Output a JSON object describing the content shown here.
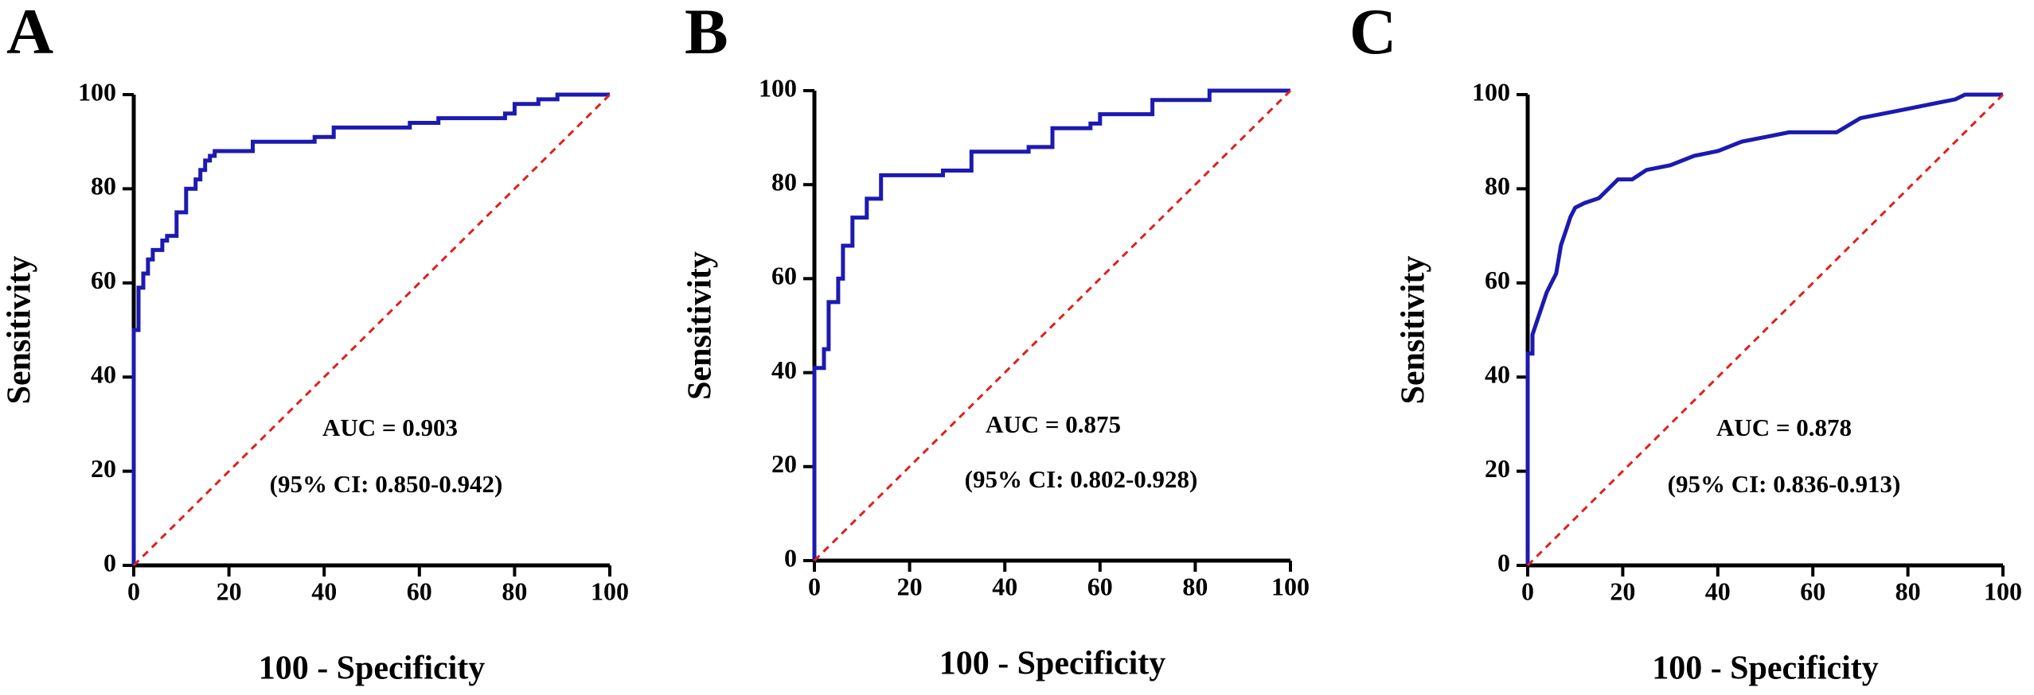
{
  "chart_data": [
    {
      "type": "line",
      "panel": "A",
      "xlabel": "100 - Specificity",
      "ylabel": "Sensitivity",
      "annotations": [
        "AUC = 0.903",
        "(95% CI: 0.850-0.942)"
      ],
      "xlim": [
        0,
        100
      ],
      "ylim": [
        0,
        100
      ],
      "xticks": [
        0,
        20,
        40,
        60,
        80,
        100
      ],
      "yticks": [
        0,
        20,
        40,
        60,
        80,
        100
      ],
      "series": [
        {
          "color": "#1c1ab0",
          "x": [
            0,
            0,
            1,
            1,
            2,
            2,
            3,
            3,
            4,
            4,
            6,
            6,
            7,
            7,
            9,
            9,
            11,
            11,
            13,
            13,
            14,
            14,
            15,
            15,
            16,
            16,
            17,
            17,
            25,
            25,
            38,
            38,
            42,
            42,
            58,
            58,
            64,
            64,
            78,
            78,
            80,
            80,
            85,
            85,
            89,
            89,
            100
          ],
          "values": [
            0,
            50,
            50,
            59,
            59,
            62,
            62,
            65,
            65,
            67,
            67,
            69,
            69,
            70,
            70,
            75,
            75,
            80,
            80,
            82,
            82,
            84,
            84,
            86,
            86,
            87,
            87,
            88,
            88,
            90,
            90,
            91,
            91,
            93,
            93,
            94,
            94,
            95,
            95,
            96,
            96,
            98,
            98,
            99,
            99,
            100,
            100
          ]
        },
        {
          "color": "#e0201b",
          "dashed": true,
          "x": [
            0,
            100
          ],
          "values": [
            0,
            100
          ]
        }
      ]
    },
    {
      "type": "line",
      "panel": "B",
      "xlabel": "100 - Specificity",
      "ylabel": "Sensitivity",
      "annotations": [
        "AUC = 0.875",
        "(95% CI: 0.802-0.928)"
      ],
      "xlim": [
        0,
        100
      ],
      "ylim": [
        0,
        100
      ],
      "xticks": [
        0,
        20,
        40,
        60,
        80,
        100
      ],
      "yticks": [
        0,
        20,
        40,
        60,
        80,
        100
      ],
      "series": [
        {
          "color": "#1c1ab0",
          "x": [
            0,
            0,
            2,
            2,
            3,
            3,
            5,
            5,
            6,
            6,
            8,
            8,
            11,
            11,
            14,
            14,
            27,
            27,
            33,
            33,
            45,
            45,
            50,
            50,
            58,
            58,
            60,
            60,
            71,
            71,
            83,
            83,
            100
          ],
          "values": [
            0,
            41,
            41,
            45,
            45,
            55,
            55,
            60,
            60,
            67,
            67,
            73,
            73,
            77,
            77,
            82,
            82,
            83,
            83,
            87,
            87,
            88,
            88,
            92,
            92,
            93,
            93,
            95,
            95,
            98,
            98,
            100,
            100
          ]
        },
        {
          "color": "#e0201b",
          "dashed": true,
          "x": [
            0,
            100
          ],
          "values": [
            0,
            100
          ]
        }
      ]
    },
    {
      "type": "line",
      "panel": "C",
      "xlabel": "100 - Specificity",
      "ylabel": "Sensitivity",
      "annotations": [
        "AUC = 0.878",
        "(95% CI: 0.836-0.913)"
      ],
      "xlim": [
        0,
        100
      ],
      "ylim": [
        0,
        100
      ],
      "xticks": [
        0,
        20,
        40,
        60,
        80,
        100
      ],
      "yticks": [
        0,
        20,
        40,
        60,
        80,
        100
      ],
      "series": [
        {
          "color": "#1c1ab0",
          "x": [
            0,
            0,
            1,
            1,
            2,
            3,
            4,
            5,
            6,
            7,
            8,
            9,
            10,
            12,
            15,
            17,
            19,
            22,
            25,
            30,
            35,
            40,
            45,
            50,
            55,
            65,
            70,
            75,
            80,
            85,
            90,
            92,
            100
          ],
          "values": [
            0,
            45,
            45,
            49,
            52,
            55,
            58,
            60,
            62,
            68,
            71,
            74,
            76,
            77,
            78,
            80,
            82,
            82,
            84,
            85,
            87,
            88,
            90,
            91,
            92,
            92,
            95,
            96,
            97,
            98,
            99,
            100,
            100
          ]
        },
        {
          "color": "#e0201b",
          "dashed": true,
          "x": [
            0,
            100
          ],
          "values": [
            0,
            100
          ]
        }
      ]
    }
  ]
}
